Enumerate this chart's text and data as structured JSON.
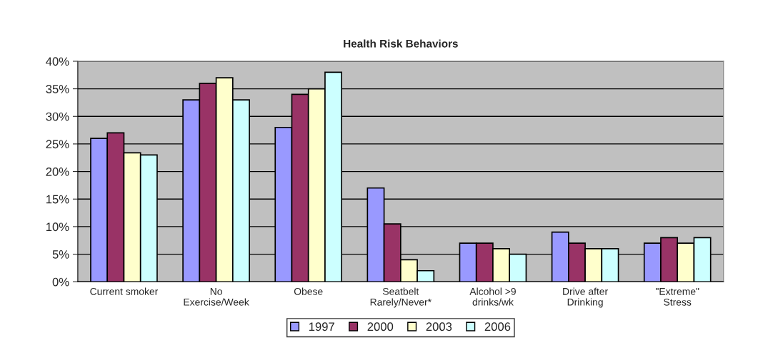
{
  "chart_data": {
    "type": "bar",
    "title": "Health Risk Behaviors",
    "categories": [
      "Current smoker",
      "No\nExercise/Week",
      "Obese",
      "Seatbelt\nRarely/Never*",
      "Alcohol >9\ndrinks/wk",
      "Drive after\nDrinking",
      "\"Extreme\"\nStress"
    ],
    "series": [
      {
        "name": "1997",
        "color": "#9999ff",
        "values": [
          26,
          33,
          28,
          17,
          7,
          9,
          7
        ]
      },
      {
        "name": "2000",
        "color": "#993366",
        "values": [
          27,
          36,
          34,
          10.5,
          7,
          7,
          8
        ]
      },
      {
        "name": "2003",
        "color": "#ffffcc",
        "values": [
          23.4,
          37,
          35,
          4,
          6,
          6,
          7
        ]
      },
      {
        "name": "2006",
        "color": "#ccffff",
        "values": [
          23,
          33,
          38,
          2,
          5,
          6,
          8
        ]
      }
    ],
    "ylim": [
      0,
      40
    ],
    "yticks": [
      {
        "value": 0,
        "label": "0%"
      },
      {
        "value": 5,
        "label": "5%"
      },
      {
        "value": 10,
        "label": "10%"
      },
      {
        "value": 15,
        "label": "15%"
      },
      {
        "value": 20,
        "label": "20%"
      },
      {
        "value": 25,
        "label": "25%"
      },
      {
        "value": 30,
        "label": "30%"
      },
      {
        "value": 35,
        "label": "35%"
      },
      {
        "value": 40,
        "label": "40%"
      }
    ],
    "grid": "y",
    "legend": "bottom"
  }
}
